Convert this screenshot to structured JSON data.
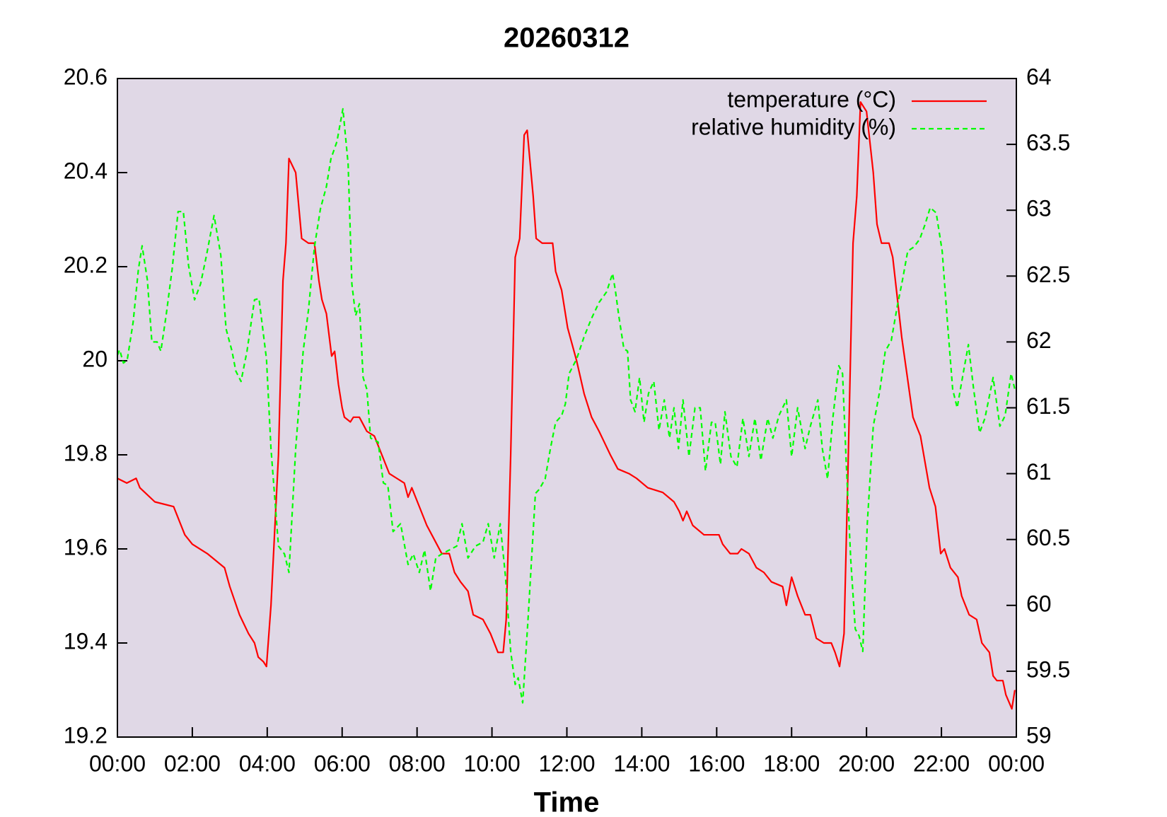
{
  "chart_data": {
    "type": "line",
    "title": "20260312",
    "x_label": "Time",
    "xlim": [
      0,
      24
    ],
    "xticks": [
      {
        "value": 0,
        "label": "00:00"
      },
      {
        "value": 2,
        "label": "02:00"
      },
      {
        "value": 4,
        "label": "04:00"
      },
      {
        "value": 6,
        "label": "06:00"
      },
      {
        "value": 8,
        "label": "08:00"
      },
      {
        "value": 10,
        "label": "10:00"
      },
      {
        "value": 12,
        "label": "12:00"
      },
      {
        "value": 14,
        "label": "14:00"
      },
      {
        "value": 16,
        "label": "16:00"
      },
      {
        "value": 18,
        "label": "18:00"
      },
      {
        "value": 20,
        "label": "20:00"
      },
      {
        "value": 22,
        "label": "22:00"
      },
      {
        "value": 24,
        "label": "00:00"
      }
    ],
    "ylim": [
      19.2,
      20.6
    ],
    "yticks": [
      19.2,
      19.4,
      19.6,
      19.8,
      {
        "value": 20,
        "label": "20"
      },
      20.2,
      20.4,
      20.6
    ],
    "y2lim": [
      59,
      64
    ],
    "y2ticks": [
      59,
      59.5,
      60,
      60.5,
      61,
      61.5,
      62,
      62.5,
      63,
      63.5,
      64
    ],
    "background": "#e0d8e6",
    "legend": "upper right",
    "series": [
      {
        "name": "temperature (°C)",
        "color": "#ff0000",
        "dashed": false,
        "axis": "y",
        "x": [
          0,
          0.25,
          0.5,
          0.6,
          1.0,
          1.5,
          1.6,
          1.8,
          2.0,
          2.4,
          2.86,
          3.0,
          3.26,
          3.5,
          3.66,
          3.76,
          3.9,
          3.98,
          4.1,
          4.3,
          4.42,
          4.5,
          4.58,
          4.76,
          4.92,
          5.1,
          5.26,
          5.38,
          5.46,
          5.58,
          5.72,
          5.8,
          5.9,
          6.0,
          6.06,
          6.22,
          6.3,
          6.46,
          6.66,
          6.86,
          7.06,
          7.26,
          7.46,
          7.66,
          7.76,
          7.86,
          8.06,
          8.26,
          8.46,
          8.66,
          8.86,
          9.0,
          9.16,
          9.36,
          9.5,
          9.76,
          9.96,
          10.16,
          10.3,
          10.38,
          10.5,
          10.62,
          10.74,
          10.86,
          10.94,
          11.1,
          11.18,
          11.34,
          11.62,
          11.7,
          11.86,
          12.02,
          12.26,
          12.46,
          12.66,
          12.86,
          12.98,
          13.16,
          13.36,
          13.66,
          13.86,
          14.16,
          14.56,
          14.86,
          15.0,
          15.1,
          15.2,
          15.36,
          15.66,
          16.06,
          16.16,
          16.36,
          16.56,
          16.66,
          16.86,
          17.06,
          17.26,
          17.46,
          17.76,
          17.86,
          18.0,
          18.16,
          18.36,
          18.5,
          18.66,
          18.86,
          19.06,
          19.16,
          19.28,
          19.4,
          19.5,
          19.64,
          19.74,
          19.84,
          20.0,
          20.18,
          20.28,
          20.4,
          20.6,
          20.7,
          20.94,
          21.24,
          21.44,
          21.68,
          21.84,
          21.98,
          22.08,
          22.24,
          22.44,
          22.54,
          22.74,
          22.94,
          23.08,
          23.28,
          23.38,
          23.48,
          23.64,
          23.72,
          23.88,
          23.96
        ],
        "values": [
          19.75,
          19.74,
          19.75,
          19.73,
          19.7,
          19.69,
          19.67,
          19.63,
          19.61,
          19.59,
          19.56,
          19.52,
          19.46,
          19.42,
          19.4,
          19.37,
          19.36,
          19.35,
          19.48,
          19.8,
          20.17,
          20.25,
          20.43,
          20.4,
          20.26,
          20.25,
          20.25,
          20.17,
          20.13,
          20.1,
          20.01,
          20.02,
          19.95,
          19.9,
          19.88,
          19.87,
          19.88,
          19.88,
          19.85,
          19.84,
          19.8,
          19.76,
          19.75,
          19.74,
          19.71,
          19.73,
          19.69,
          19.65,
          19.62,
          19.59,
          19.59,
          19.55,
          19.53,
          19.51,
          19.46,
          19.45,
          19.42,
          19.38,
          19.38,
          19.45,
          19.8,
          20.22,
          20.26,
          20.48,
          20.49,
          20.35,
          20.26,
          20.25,
          20.25,
          20.19,
          20.15,
          20.07,
          20.0,
          19.93,
          19.88,
          19.85,
          19.83,
          19.8,
          19.77,
          19.76,
          19.75,
          19.73,
          19.72,
          19.7,
          19.68,
          19.66,
          19.68,
          19.65,
          19.63,
          19.63,
          19.61,
          19.59,
          19.59,
          19.6,
          19.59,
          19.56,
          19.55,
          19.53,
          19.52,
          19.48,
          19.54,
          19.5,
          19.46,
          19.46,
          19.41,
          19.4,
          19.4,
          19.38,
          19.35,
          19.42,
          19.75,
          20.25,
          20.35,
          20.55,
          20.53,
          20.4,
          20.29,
          20.25,
          20.25,
          20.22,
          20.05,
          19.88,
          19.84,
          19.73,
          19.69,
          19.59,
          19.6,
          19.56,
          19.54,
          19.5,
          19.46,
          19.45,
          19.4,
          19.38,
          19.33,
          19.32,
          19.32,
          19.29,
          19.26,
          19.3
        ]
      },
      {
        "name": "relative humidity (%)",
        "color": "#00ff00",
        "dashed": true,
        "axis": "y2",
        "x": [
          0,
          0.06,
          0.16,
          0.26,
          0.42,
          0.56,
          0.66,
          0.8,
          0.92,
          1.06,
          1.16,
          1.3,
          1.46,
          1.62,
          1.76,
          1.9,
          2.06,
          2.22,
          2.38,
          2.58,
          2.76,
          2.9,
          3.06,
          3.16,
          3.3,
          3.46,
          3.66,
          3.78,
          3.98,
          4.1,
          4.3,
          4.46,
          4.58,
          4.76,
          4.96,
          5.1,
          5.26,
          5.42,
          5.58,
          5.7,
          5.86,
          6.02,
          6.16,
          6.26,
          6.36,
          6.46,
          6.56,
          6.66,
          6.76,
          6.96,
          7.1,
          7.22,
          7.36,
          7.56,
          7.76,
          7.9,
          8.06,
          8.2,
          8.36,
          8.5,
          8.66,
          8.86,
          9.06,
          9.2,
          9.36,
          9.56,
          9.76,
          9.9,
          10.06,
          10.22,
          10.36,
          10.5,
          10.62,
          10.7,
          10.82,
          10.96,
          11.16,
          11.26,
          11.42,
          11.56,
          11.7,
          11.86,
          11.96,
          12.06,
          12.26,
          12.46,
          12.66,
          12.86,
          13.06,
          13.22,
          13.3,
          13.38,
          13.52,
          13.62,
          13.7,
          13.82,
          13.94,
          14.06,
          14.18,
          14.32,
          14.46,
          14.6,
          14.74,
          14.86,
          14.98,
          15.1,
          15.26,
          15.42,
          15.56,
          15.7,
          15.86,
          15.96,
          16.1,
          16.22,
          16.38,
          16.54,
          16.7,
          16.86,
          17.02,
          17.18,
          17.36,
          17.5,
          17.66,
          17.86,
          18.0,
          18.16,
          18.36,
          18.5,
          18.7,
          18.82,
          18.96,
          19.1,
          19.26,
          19.36,
          19.46,
          19.58,
          19.7,
          19.8,
          19.9,
          20.02,
          20.18,
          20.36,
          20.5,
          20.66,
          20.82,
          20.96,
          21.1,
          21.26,
          21.42,
          21.56,
          21.7,
          21.86,
          22.02,
          22.16,
          22.3,
          22.42,
          22.58,
          22.72,
          22.86,
          23.02,
          23.16,
          23.38,
          23.56,
          23.7,
          23.86,
          23.96
        ],
        "values": [
          61.9,
          61.94,
          61.84,
          61.86,
          62.15,
          62.55,
          62.73,
          62.47,
          62.0,
          62.0,
          61.93,
          62.2,
          62.55,
          62.99,
          62.99,
          62.58,
          62.32,
          62.44,
          62.66,
          62.96,
          62.66,
          62.1,
          61.93,
          61.78,
          61.7,
          61.93,
          62.32,
          62.33,
          61.87,
          61.19,
          60.45,
          60.39,
          60.25,
          61.19,
          61.93,
          62.24,
          62.72,
          63.01,
          63.18,
          63.39,
          63.52,
          63.77,
          63.35,
          62.44,
          62.2,
          62.29,
          61.73,
          61.64,
          61.27,
          61.24,
          60.93,
          60.91,
          60.56,
          60.62,
          60.31,
          60.39,
          60.25,
          60.42,
          60.11,
          60.36,
          60.39,
          60.42,
          60.45,
          60.62,
          60.36,
          60.45,
          60.48,
          60.62,
          60.36,
          60.62,
          60.22,
          59.65,
          59.4,
          59.45,
          59.26,
          59.88,
          60.85,
          60.88,
          60.96,
          61.19,
          61.39,
          61.44,
          61.53,
          61.76,
          61.87,
          62.04,
          62.18,
          62.3,
          62.38,
          62.52,
          62.38,
          62.21,
          61.95,
          61.93,
          61.56,
          61.47,
          61.73,
          61.39,
          61.61,
          61.7,
          61.33,
          61.56,
          61.27,
          61.5,
          61.19,
          61.56,
          61.13,
          61.5,
          61.5,
          61.02,
          61.39,
          61.39,
          61.07,
          61.47,
          61.13,
          61.05,
          61.42,
          61.13,
          61.42,
          61.1,
          61.42,
          61.27,
          61.44,
          61.56,
          61.13,
          61.5,
          61.19,
          61.36,
          61.56,
          61.19,
          60.96,
          61.42,
          61.82,
          61.76,
          61.07,
          60.34,
          59.82,
          59.77,
          59.65,
          60.62,
          61.36,
          61.64,
          61.93,
          62.01,
          62.27,
          62.47,
          62.69,
          62.72,
          62.78,
          62.89,
          63.02,
          62.98,
          62.69,
          62.15,
          61.64,
          61.5,
          61.76,
          61.98,
          61.64,
          61.31,
          61.42,
          61.73,
          61.36,
          61.44,
          61.76,
          61.64
        ]
      }
    ]
  }
}
